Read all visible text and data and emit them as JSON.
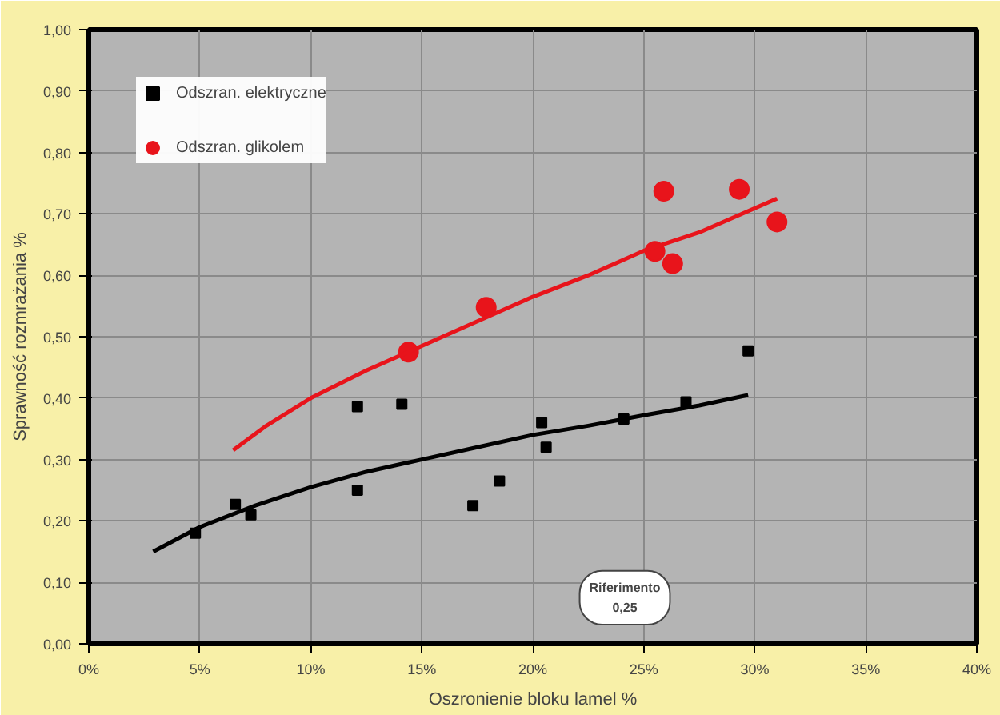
{
  "chart_data": {
    "type": "scatter",
    "xlabel": "Oszronienie bloku lamel %",
    "ylabel": "Sprawność rozmrażania %",
    "series": [
      {
        "name": "Odszran. elektryczne",
        "color": "#000000",
        "marker": "square",
        "x": [
          4.8,
          6.6,
          7.3,
          12.1,
          12.1,
          14.1,
          17.3,
          18.5,
          20.4,
          20.6,
          24.1,
          26.9,
          29.7
        ],
        "values": [
          0.18,
          0.227,
          0.21,
          0.386,
          0.25,
          0.39,
          0.225,
          0.265,
          0.36,
          0.32,
          0.366,
          0.394,
          0.477
        ]
      },
      {
        "name": "Odszran. glikolem",
        "color": "#e8141b",
        "marker": "circle",
        "x": [
          14.4,
          17.9,
          25.5,
          25.9,
          26.3,
          29.3,
          31.0
        ],
        "values": [
          0.475,
          0.548,
          0.639,
          0.737,
          0.619,
          0.74,
          0.687
        ]
      },
      {
        "type": "line",
        "color": "#000000",
        "x": [
          2.9,
          5,
          7.5,
          10,
          12.5,
          15,
          17.5,
          20,
          22.5,
          25,
          27.5,
          29.7
        ],
        "values": [
          0.15,
          0.19,
          0.225,
          0.255,
          0.28,
          0.3,
          0.32,
          0.34,
          0.355,
          0.372,
          0.388,
          0.405
        ]
      },
      {
        "type": "line",
        "color": "#e8141b",
        "x": [
          6.5,
          8,
          10,
          12.5,
          15,
          17.5,
          20,
          22.5,
          25,
          27.5,
          31.0
        ],
        "values": [
          0.315,
          0.355,
          0.4,
          0.445,
          0.485,
          0.525,
          0.565,
          0.6,
          0.64,
          0.67,
          0.725
        ]
      }
    ],
    "xlim": [
      0,
      40
    ],
    "ylim": [
      0,
      1
    ],
    "xticks": [
      {
        "value": 0,
        "label": "0%"
      },
      {
        "value": 5,
        "label": "5%"
      },
      {
        "value": 10,
        "label": "10%"
      },
      {
        "value": 15,
        "label": "15%"
      },
      {
        "value": 20,
        "label": "20%"
      },
      {
        "value": 25,
        "label": "25%"
      },
      {
        "value": 30,
        "label": "30%"
      },
      {
        "value": 35,
        "label": "35%"
      },
      {
        "value": 40,
        "label": "40%"
      }
    ],
    "yticks": [
      {
        "value": 0,
        "label": "0,00"
      },
      {
        "value": 0.1,
        "label": "0,10"
      },
      {
        "value": 0.2,
        "label": "0,20"
      },
      {
        "value": 0.3,
        "label": "0,30"
      },
      {
        "value": 0.4,
        "label": "0,40"
      },
      {
        "value": 0.5,
        "label": "0,50"
      },
      {
        "value": 0.6,
        "label": "0,60"
      },
      {
        "value": 0.7,
        "label": "0,70"
      },
      {
        "value": 0.8,
        "label": "0,80"
      },
      {
        "value": 0.9,
        "label": "0,90"
      },
      {
        "value": 1,
        "label": "1,00"
      }
    ],
    "grid": true,
    "legend": "top left",
    "annotations": [
      "Riferimento\n0,25"
    ]
  }
}
